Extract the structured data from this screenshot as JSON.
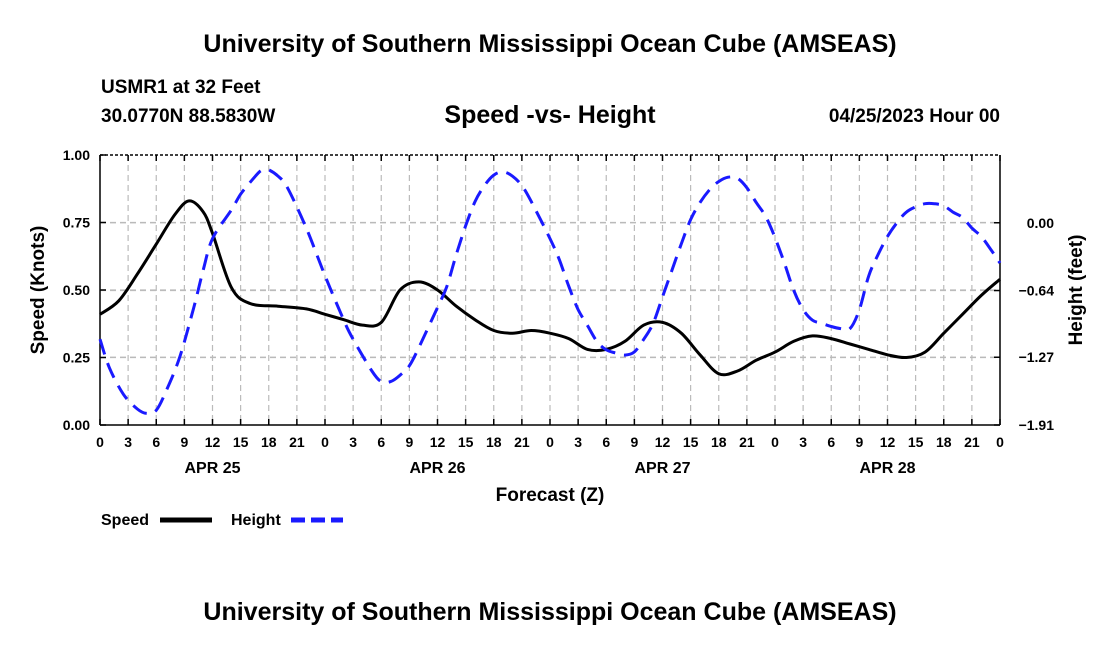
{
  "page": {
    "top_title": "University of Southern Mississippi Ocean Cube (AMSEAS)",
    "bottom_title": "University of Southern Mississippi Ocean Cube (AMSEAS)",
    "station": "USMR1 at 32 Feet",
    "coords": "30.0770N  88.5830W",
    "subtitle": "Speed -vs- Height",
    "stamp": "04/25/2023 Hour 00"
  },
  "chart_data": {
    "type": "line",
    "title": "Speed -vs- Height",
    "xlabel": "Forecast (Z)",
    "ylabel": "Speed (Knots)",
    "y2label": "Height (feet)",
    "x_unit": "forecast hour",
    "xlim": [
      0,
      96
    ],
    "ylim": [
      0,
      1
    ],
    "y2lim": [
      -1.91,
      0.64
    ],
    "grid": true,
    "x_ticks": [
      0,
      3,
      6,
      9,
      12,
      15,
      18,
      21,
      24,
      27,
      30,
      33,
      36,
      39,
      42,
      45,
      48,
      51,
      54,
      57,
      60,
      63,
      66,
      69,
      72,
      75,
      78,
      81,
      84,
      87,
      90,
      93,
      96
    ],
    "x_tick_labels": [
      "0",
      "3",
      "6",
      "9",
      "12",
      "15",
      "18",
      "21",
      "0",
      "3",
      "6",
      "9",
      "12",
      "15",
      "18",
      "21",
      "0",
      "3",
      "6",
      "9",
      "12",
      "15",
      "18",
      "21",
      "0",
      "3",
      "6",
      "9",
      "12",
      "15",
      "18",
      "21",
      "0"
    ],
    "y_ticks": [
      0,
      0.25,
      0.5,
      0.75,
      1
    ],
    "y_tick_labels": [
      "0.00",
      "0.25",
      "0.50",
      "0.75",
      "1.00"
    ],
    "y2_ticks": [
      0,
      -0.64,
      -1.27,
      -1.91
    ],
    "y2_tick_labels": [
      "0.00",
      "−0.64",
      "−1.27",
      "−1.91"
    ],
    "date_labels": [
      {
        "hour": 12,
        "label": "APR 25"
      },
      {
        "hour": 36,
        "label": "APR 26"
      },
      {
        "hour": 60,
        "label": "APR 27"
      },
      {
        "hour": 84,
        "label": "APR 28"
      }
    ],
    "legend": [
      {
        "label": "Speed",
        "color": "#000000",
        "style": "solid"
      },
      {
        "label": "Height",
        "color": "#1a1aff",
        "style": "dashed"
      }
    ],
    "series": [
      {
        "name": "Speed",
        "axis": "left",
        "color": "#000000",
        "dash": false,
        "x": [
          0,
          2,
          4,
          6,
          8,
          9.5,
          11,
          12,
          14,
          16,
          19,
          22,
          24,
          26,
          28,
          30,
          32,
          34,
          36,
          38,
          40,
          42,
          44,
          46,
          48,
          50,
          52,
          54,
          56,
          58,
          60,
          62,
          64,
          66,
          68,
          70,
          72,
          74,
          76,
          78,
          80,
          82,
          84,
          86,
          88,
          90,
          92,
          94,
          96
        ],
        "values": [
          0.41,
          0.46,
          0.56,
          0.67,
          0.78,
          0.83,
          0.79,
          0.71,
          0.51,
          0.45,
          0.44,
          0.43,
          0.41,
          0.39,
          0.37,
          0.38,
          0.5,
          0.53,
          0.5,
          0.44,
          0.39,
          0.35,
          0.34,
          0.35,
          0.34,
          0.32,
          0.28,
          0.28,
          0.31,
          0.37,
          0.38,
          0.34,
          0.26,
          0.19,
          0.2,
          0.24,
          0.27,
          0.31,
          0.33,
          0.32,
          0.3,
          0.28,
          0.26,
          0.25,
          0.27,
          0.34,
          0.41,
          0.48,
          0.54
        ]
      },
      {
        "name": "Height",
        "axis": "right",
        "color": "#1a1aff",
        "dash": true,
        "x": [
          0,
          1,
          2.5,
          4,
          5,
          6,
          7,
          8.5,
          10,
          11,
          12,
          14,
          15,
          16,
          17,
          17.5,
          18,
          19,
          20,
          22,
          24,
          26,
          27,
          29,
          30,
          31,
          32,
          33,
          34,
          36,
          37,
          38,
          39,
          40,
          41,
          42,
          43,
          44,
          45,
          46,
          48,
          49,
          50,
          51,
          52,
          53,
          54,
          55,
          56,
          57,
          58,
          59,
          60,
          61,
          62,
          63,
          64,
          65,
          66,
          67,
          68,
          69,
          70,
          71,
          72,
          73,
          74,
          75,
          76,
          77,
          78,
          79,
          80,
          81,
          82,
          83,
          84,
          85,
          86,
          87,
          88,
          89,
          90,
          91,
          92,
          93,
          94,
          95,
          96
        ],
        "values": [
          -1.1,
          -1.37,
          -1.62,
          -1.76,
          -1.8,
          -1.77,
          -1.6,
          -1.27,
          -0.8,
          -0.45,
          -0.15,
          0.12,
          0.27,
          0.38,
          0.48,
          0.5,
          0.5,
          0.44,
          0.33,
          -0.05,
          -0.5,
          -0.92,
          -1.1,
          -1.4,
          -1.5,
          -1.5,
          -1.44,
          -1.35,
          -1.18,
          -0.8,
          -0.6,
          -0.3,
          -0.03,
          0.2,
          0.35,
          0.45,
          0.48,
          0.44,
          0.35,
          0.2,
          -0.15,
          -0.35,
          -0.6,
          -0.82,
          -0.97,
          -1.12,
          -1.2,
          -1.23,
          -1.25,
          -1.22,
          -1.1,
          -0.95,
          -0.7,
          -0.45,
          -0.2,
          0.03,
          0.19,
          0.31,
          0.39,
          0.43,
          0.42,
          0.33,
          0.19,
          0.06,
          -0.14,
          -0.38,
          -0.64,
          -0.82,
          -0.92,
          -0.95,
          -0.98,
          -1.0,
          -1.0,
          -0.82,
          -0.5,
          -0.3,
          -0.13,
          0.0,
          0.1,
          0.15,
          0.18,
          0.18,
          0.16,
          0.1,
          0.05,
          -0.05,
          -0.13,
          -0.25,
          -0.38
        ]
      }
    ]
  }
}
